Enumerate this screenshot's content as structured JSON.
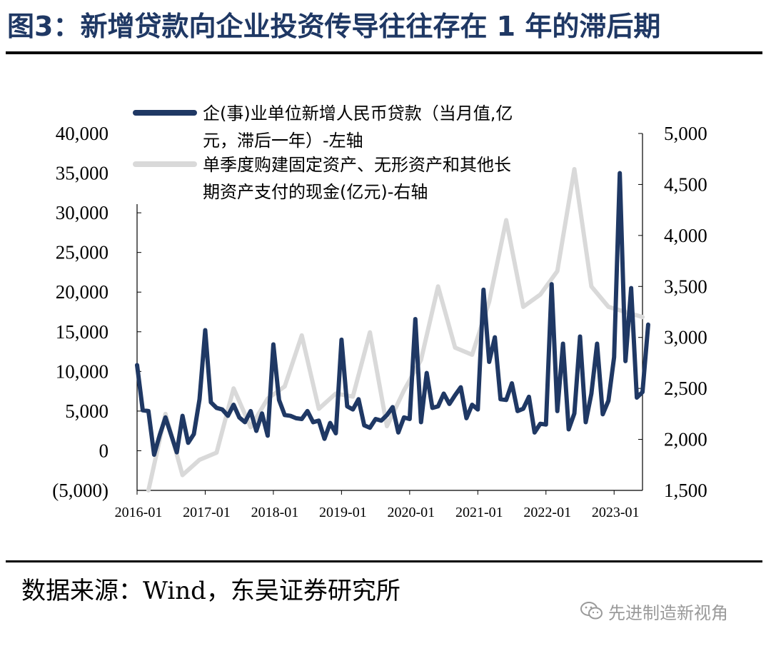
{
  "title": "图3：新增贷款向企业投资传导往往存在 1 年的滞后期",
  "source": "数据来源：Wind，东吴证券研究所",
  "watermark": "先进制造新视角",
  "colors": {
    "title": "#1f3864",
    "loan_series": "#1f3864",
    "capex_series": "#d9d9d9",
    "negative_tick": "#ff0000"
  },
  "chart_data": {
    "type": "line",
    "x_tick_labels": [
      "2016-01",
      "2017-01",
      "2018-01",
      "2019-01",
      "2020-01",
      "2021-01",
      "2022-01",
      "2023-01"
    ],
    "left_axis": {
      "ylim": [
        -5000,
        40000
      ],
      "ticks": [
        -5000,
        0,
        5000,
        10000,
        15000,
        20000,
        25000,
        30000,
        35000,
        40000
      ],
      "tick_labels": [
        "(5,000)",
        "0",
        "5,000",
        "10,000",
        "15,000",
        "20,000",
        "25,000",
        "30,000",
        "35,000",
        "40,000"
      ]
    },
    "right_axis": {
      "ylim": [
        1500,
        5000
      ],
      "ticks": [
        1500,
        2000,
        2500,
        3000,
        3500,
        4000,
        4500,
        5000
      ],
      "tick_labels": [
        "1,500",
        "2,000",
        "2,500",
        "3,000",
        "3,500",
        "4,000",
        "4,500",
        "5,000"
      ]
    },
    "legend_placement": "top-center",
    "grid": false,
    "series": [
      {
        "name": "企(事)业单位新增人民币贷款（当月值,亿元，滞后一年）-左轴",
        "legend_lines": [
          "企(事)业单位新增人民币贷款（当月值,亿",
          "元，滞后一年）-左轴"
        ],
        "axis": "left",
        "x_start": "2016-01",
        "x_step": "month",
        "values": [
          10800,
          5100,
          5000,
          -500,
          2000,
          4200,
          2000,
          -200,
          4400,
          1000,
          2100,
          6500,
          15200,
          6100,
          5400,
          5200,
          4400,
          5800,
          4200,
          3600,
          5000,
          2500,
          4700,
          1900,
          13400,
          6400,
          4500,
          4400,
          4100,
          4000,
          5000,
          3600,
          3800,
          1500,
          3500,
          2200,
          14000,
          5600,
          5200,
          6500,
          3200,
          2900,
          4000,
          3800,
          4500,
          5500,
          2300,
          4200,
          4000,
          16600,
          3600,
          9800,
          5400,
          5600,
          7200,
          5900,
          7000,
          8000,
          4100,
          5800,
          5200,
          20300,
          11200,
          14300,
          6500,
          6400,
          8500,
          5000,
          5300,
          6800,
          2300,
          3400,
          3300,
          21000,
          5000,
          13500,
          2700,
          4700,
          14400,
          3600,
          7200,
          13500,
          4600,
          6300,
          11800,
          35000,
          11300,
          20500,
          6700,
          7400,
          15900
        ]
      },
      {
        "name": "单季度购建固定资产、无形资产和其他长期资产支付的现金(亿元)-右轴",
        "legend_lines": [
          "单季度购建固定资产、无形资产和其他长",
          "期资产支付的现金(亿元)-右轴"
        ],
        "axis": "right",
        "x": [
          "2016-03",
          "2016-06",
          "2016-09",
          "2016-12",
          "2017-03",
          "2017-06",
          "2017-09",
          "2017-12",
          "2018-03",
          "2018-06",
          "2018-09",
          "2018-12",
          "2019-03",
          "2019-06",
          "2019-09",
          "2019-12",
          "2020-03",
          "2020-06",
          "2020-09",
          "2020-12",
          "2021-03",
          "2021-06",
          "2021-09",
          "2021-12",
          "2022-03",
          "2022-06",
          "2022-09",
          "2022-12",
          "2023-03",
          "2023-06"
        ],
        "values": [
          1500,
          2250,
          1650,
          1800,
          1870,
          2500,
          2120,
          2400,
          2520,
          3020,
          2300,
          2450,
          2420,
          3050,
          2130,
          2480,
          2780,
          3500,
          2900,
          2830,
          3350,
          4150,
          3300,
          3420,
          3650,
          4650,
          3500,
          3300,
          3250,
          3200
        ]
      }
    ]
  }
}
